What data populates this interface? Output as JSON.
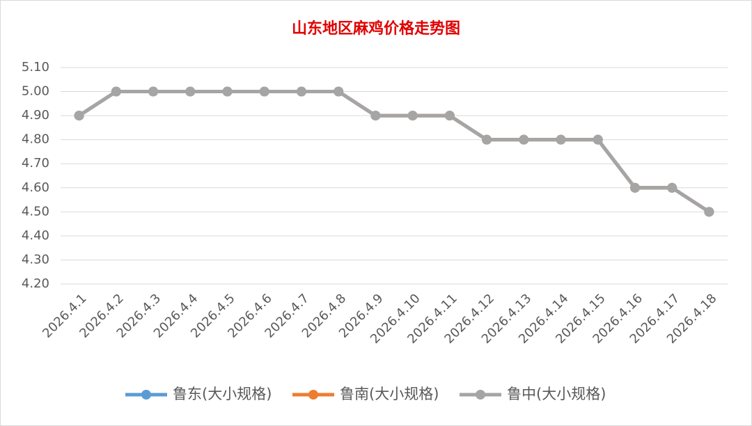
{
  "chart_data": {
    "type": "line",
    "title": "山东地区麻鸡价格走势图",
    "categories": [
      "2026.4.1",
      "2026.4.2",
      "2026.4.3",
      "2026.4.4",
      "2026.4.5",
      "2026.4.6",
      "2026.4.7",
      "2026.4.8",
      "2026.4.9",
      "2026.4.10",
      "2026.4.11",
      "2026.4.12",
      "2026.4.13",
      "2026.4.14",
      "2026.4.15",
      "2026.4.16",
      "2026.4.17",
      "2026.4.18"
    ],
    "series": [
      {
        "name": "鲁东(大小规格)",
        "color": "#5b9bd5",
        "values": [
          4.9,
          5.0,
          5.0,
          5.0,
          5.0,
          5.0,
          5.0,
          5.0,
          4.9,
          4.9,
          4.9,
          4.8,
          4.8,
          4.8,
          4.8,
          4.6,
          4.6,
          4.5
        ]
      },
      {
        "name": "鲁南(大小规格)",
        "color": "#ed7d31",
        "values": [
          4.9,
          5.0,
          5.0,
          5.0,
          5.0,
          5.0,
          5.0,
          5.0,
          4.9,
          4.9,
          4.9,
          4.8,
          4.8,
          4.8,
          4.8,
          4.6,
          4.6,
          4.5
        ]
      },
      {
        "name": "鲁中(大小规格)",
        "color": "#a5a5a5",
        "values": [
          4.9,
          5.0,
          5.0,
          5.0,
          5.0,
          5.0,
          5.0,
          5.0,
          4.9,
          4.9,
          4.9,
          4.8,
          4.8,
          4.8,
          4.8,
          4.6,
          4.6,
          4.5
        ]
      }
    ],
    "ylim": [
      4.2,
      5.1
    ],
    "yticks": [
      {
        "value": 4.2,
        "label": "4.20"
      },
      {
        "value": 4.3,
        "label": "4.30"
      },
      {
        "value": 4.4,
        "label": "4.40"
      },
      {
        "value": 4.5,
        "label": "4.50"
      },
      {
        "value": 4.6,
        "label": "4.60"
      },
      {
        "value": 4.7,
        "label": "4.70"
      },
      {
        "value": 4.8,
        "label": "4.80"
      },
      {
        "value": 4.9,
        "label": "4.90"
      },
      {
        "value": 5.0,
        "label": "5.00"
      },
      {
        "value": 5.1,
        "label": "5.10"
      }
    ],
    "grid": true,
    "legend": "bottom"
  }
}
